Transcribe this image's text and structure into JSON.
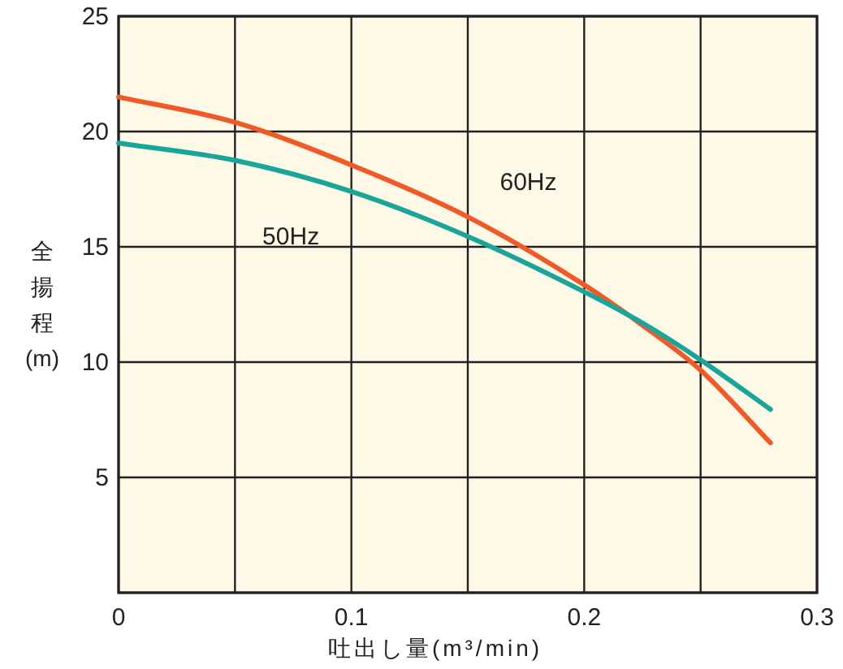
{
  "chart_data": {
    "type": "line",
    "xlabel": "吐出し量(m³/min)",
    "ylabel": "全揚程(m)",
    "x": [
      0,
      0.05,
      0.1,
      0.15,
      0.2,
      0.225,
      0.25,
      0.28
    ],
    "series": [
      {
        "name": "60Hz",
        "color": "#f05a28",
        "values": [
          21.5,
          20.4,
          18.55,
          16.3,
          13.35,
          11.6,
          9.65,
          6.5
        ]
      },
      {
        "name": "50Hz",
        "color": "#1aa59a",
        "values": [
          19.5,
          18.75,
          17.4,
          15.45,
          13.05,
          11.7,
          10.1,
          7.95
        ]
      }
    ],
    "xlim": [
      0,
      0.3
    ],
    "ylim": [
      0,
      25
    ],
    "xticks": [
      0,
      {
        "value": 0.05,
        "label": null
      },
      0.1,
      {
        "value": 0.15,
        "label": null
      },
      0.2,
      {
        "value": 0.25,
        "label": null
      },
      0.3
    ],
    "yticks": [
      {
        "value": 0,
        "label": null
      },
      5,
      10,
      15,
      20,
      25
    ],
    "grid": true,
    "legend": false,
    "marker": "none",
    "line_style": "solid"
  }
}
